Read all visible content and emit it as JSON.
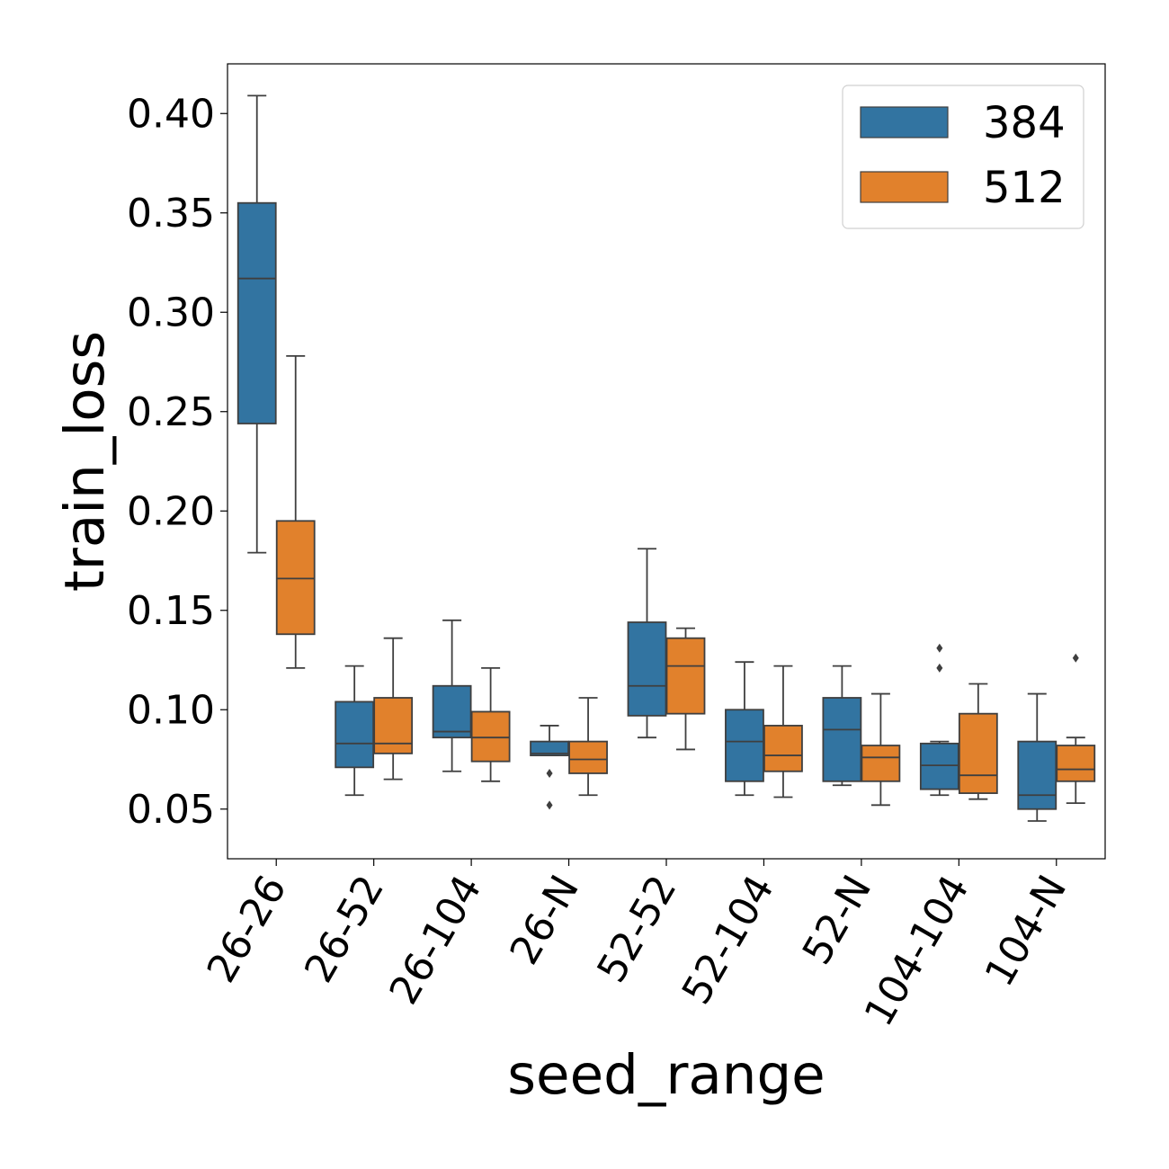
{
  "chart_data": {
    "type": "box",
    "title": "",
    "xlabel": "seed_range",
    "ylabel": "train_loss",
    "ylim": [
      0.025,
      0.425
    ],
    "yticks": [
      0.05,
      0.1,
      0.15,
      0.2,
      0.25,
      0.3,
      0.35,
      0.4
    ],
    "ytick_labels": [
      "0.05",
      "0.10",
      "0.15",
      "0.20",
      "0.25",
      "0.30",
      "0.35",
      "0.40"
    ],
    "categories": [
      "26-26",
      "26-52",
      "26-104",
      "26-N",
      "52-52",
      "52-104",
      "52-N",
      "104-104",
      "104-N"
    ],
    "legend": {
      "position": "top-right"
    },
    "series": [
      {
        "name": "384",
        "color": "#3274a1",
        "boxes": [
          {
            "whisker_low": 0.179,
            "q1": 0.244,
            "median": 0.317,
            "q3": 0.355,
            "whisker_high": 0.409,
            "outliers": []
          },
          {
            "whisker_low": 0.057,
            "q1": 0.071,
            "median": 0.083,
            "q3": 0.104,
            "whisker_high": 0.122,
            "outliers": []
          },
          {
            "whisker_low": 0.069,
            "q1": 0.086,
            "median": 0.089,
            "q3": 0.112,
            "whisker_high": 0.145,
            "outliers": []
          },
          {
            "whisker_low": 0.077,
            "q1": 0.077,
            "median": 0.078,
            "q3": 0.084,
            "whisker_high": 0.092,
            "outliers": [
              0.068,
              0.052
            ]
          },
          {
            "whisker_low": 0.086,
            "q1": 0.097,
            "median": 0.112,
            "q3": 0.144,
            "whisker_high": 0.181,
            "outliers": []
          },
          {
            "whisker_low": 0.057,
            "q1": 0.064,
            "median": 0.084,
            "q3": 0.1,
            "whisker_high": 0.124,
            "outliers": []
          },
          {
            "whisker_low": 0.062,
            "q1": 0.064,
            "median": 0.09,
            "q3": 0.106,
            "whisker_high": 0.122,
            "outliers": []
          },
          {
            "whisker_low": 0.057,
            "q1": 0.06,
            "median": 0.072,
            "q3": 0.083,
            "whisker_high": 0.084,
            "outliers": [
              0.121,
              0.131
            ]
          },
          {
            "whisker_low": 0.044,
            "q1": 0.05,
            "median": 0.057,
            "q3": 0.084,
            "whisker_high": 0.108,
            "outliers": []
          }
        ]
      },
      {
        "name": "512",
        "color": "#e1812c",
        "boxes": [
          {
            "whisker_low": 0.121,
            "q1": 0.138,
            "median": 0.166,
            "q3": 0.195,
            "whisker_high": 0.278,
            "outliers": []
          },
          {
            "whisker_low": 0.065,
            "q1": 0.078,
            "median": 0.083,
            "q3": 0.106,
            "whisker_high": 0.136,
            "outliers": []
          },
          {
            "whisker_low": 0.064,
            "q1": 0.074,
            "median": 0.086,
            "q3": 0.099,
            "whisker_high": 0.121,
            "outliers": []
          },
          {
            "whisker_low": 0.057,
            "q1": 0.068,
            "median": 0.075,
            "q3": 0.084,
            "whisker_high": 0.106,
            "outliers": []
          },
          {
            "whisker_low": 0.08,
            "q1": 0.098,
            "median": 0.122,
            "q3": 0.136,
            "whisker_high": 0.141,
            "outliers": []
          },
          {
            "whisker_low": 0.056,
            "q1": 0.069,
            "median": 0.077,
            "q3": 0.092,
            "whisker_high": 0.122,
            "outliers": []
          },
          {
            "whisker_low": 0.052,
            "q1": 0.064,
            "median": 0.076,
            "q3": 0.082,
            "whisker_high": 0.108,
            "outliers": []
          },
          {
            "whisker_low": 0.055,
            "q1": 0.058,
            "median": 0.067,
            "q3": 0.098,
            "whisker_high": 0.113,
            "outliers": []
          },
          {
            "whisker_low": 0.053,
            "q1": 0.064,
            "median": 0.07,
            "q3": 0.082,
            "whisker_high": 0.086,
            "outliers": [
              0.126
            ]
          }
        ]
      }
    ]
  }
}
